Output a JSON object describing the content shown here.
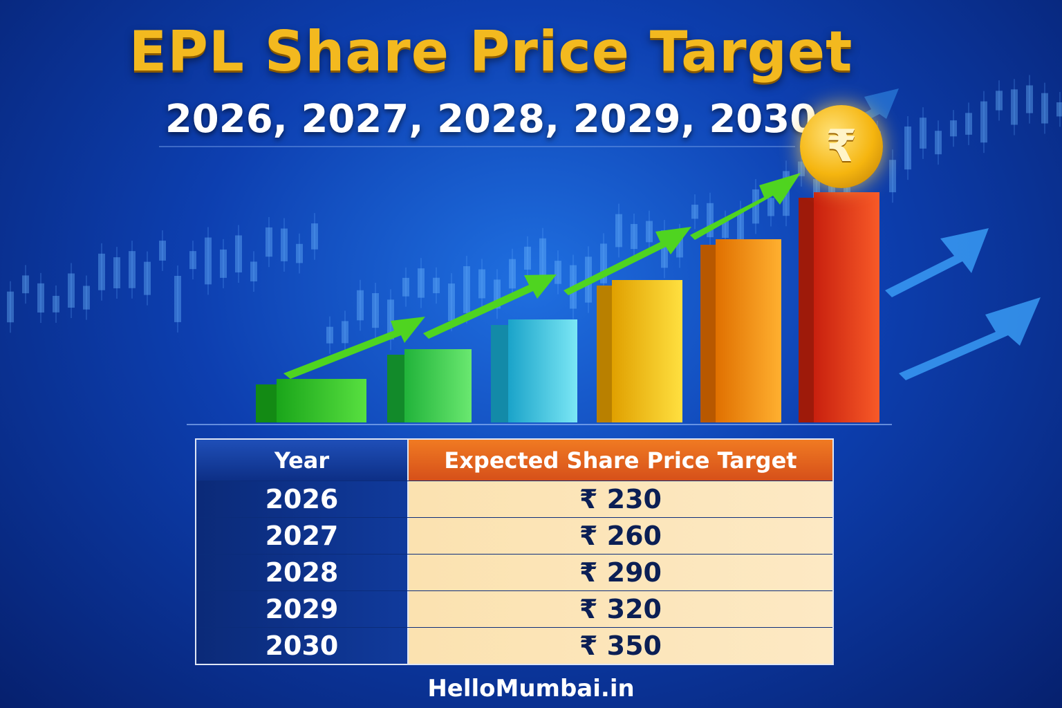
{
  "header": {
    "title": "EPL Share Price Target",
    "subtitle": "2026, 2027, 2028, 2029, 2030"
  },
  "coin_symbol": "₹",
  "table": {
    "columns": [
      "Year",
      "Expected Share Price Target"
    ],
    "rows": [
      [
        "2026",
        "₹ 230"
      ],
      [
        "2027",
        "₹ 260"
      ],
      [
        "2028",
        "₹ 290"
      ],
      [
        "2029",
        "₹ 320"
      ],
      [
        "2030",
        "₹ 350"
      ]
    ]
  },
  "footer": "HelloMumbai.in"
}
